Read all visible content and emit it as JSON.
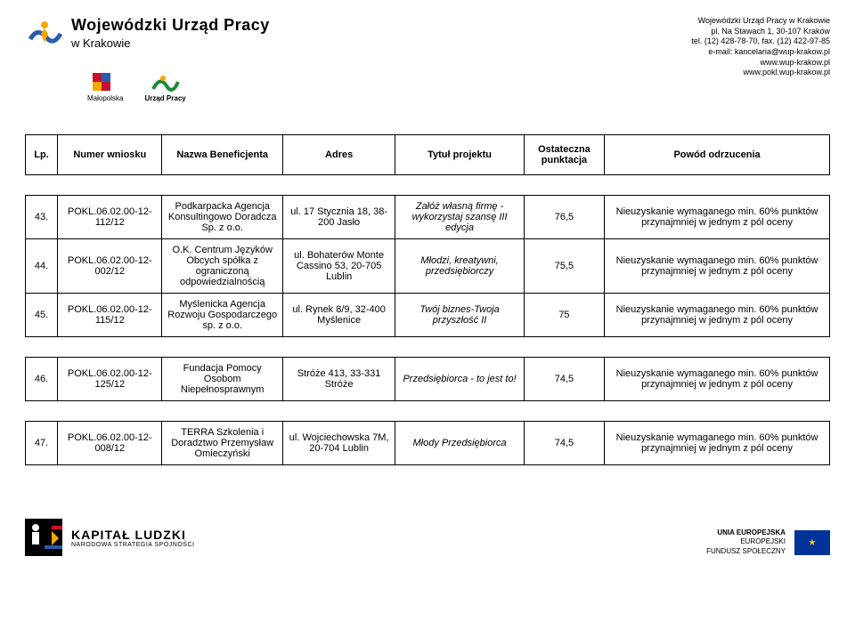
{
  "header": {
    "org_title_1": "Wojewódzki Urząd Pracy",
    "org_title_2": "w Krakowie",
    "address_line1": "Wojewódzki Urząd Pracy w Krakowie",
    "address_line2": "pl. Na Stawach 1, 30-107 Kraków",
    "address_line3": "tel. (12) 428-78-70, fax. (12) 422-97-85",
    "address_line4": "e-mail: kancelaria@wup-krakow.pl",
    "address_line5": "www.wup-krakow.pl",
    "address_line6": "www.pokl.wup-krakow.pl",
    "mid_logo_1": "Małopolska",
    "mid_logo_2": "Urząd Pracy"
  },
  "table": {
    "headers": {
      "c1": "Lp.",
      "c2": "Numer wniosku",
      "c3": "Nazwa Beneficjenta",
      "c4": "Adres",
      "c5": "Tytuł projektu",
      "c6": "Ostateczna punktacja",
      "c7": "Powód odrzucenia"
    },
    "rows": [
      {
        "lp": "43.",
        "num": "POKL.06.02.00-12-112/12",
        "benef": "Podkarpacka Agencja Konsultingowo Doradcza Sp. z o.o.",
        "adres": "ul. 17 Stycznia 18, 38-200 Jasło",
        "tytul": "Załóż własną firmę - wykorzystaj szansę III edycja",
        "pkt": "76,5",
        "powod": "Nieuzyskanie wymaganego min. 60% punktów przynajmniej w jednym z pól oceny"
      },
      {
        "lp": "44.",
        "num": "POKL.06.02.00-12-002/12",
        "benef": "O.K. Centrum Języków Obcych spółka z ograniczoną odpowiedzialnością",
        "adres": "ul. Bohaterów Monte Cassino 53, 20-705 Lublin",
        "tytul": "Młodzi, kreatywni, przedsiębiorczy",
        "pkt": "75,5",
        "powod": "Nieuzyskanie wymaganego min. 60% punktów przynajmniej w jednym z pól oceny"
      },
      {
        "lp": "45.",
        "num": "POKL.06.02.00-12-115/12",
        "benef": "Myślenicka Agencja Rozwoju Gospodarczego sp. z o.o.",
        "adres": "ul. Rynek 8/9, 32-400 Myślenice",
        "tytul": "Twój biznes-Twoja przyszłość II",
        "pkt": "75",
        "powod": "Nieuzyskanie wymaganego min. 60% punktów przynajmniej w jednym z pól oceny"
      },
      {
        "lp": "46.",
        "num": "POKL.06.02.00-12-125/12",
        "benef": "Fundacja Pomocy Osobom Niepełnosprawnym",
        "adres": "Stróże 413, 33-331 Stróże",
        "tytul": "Przedsiębiorca - to jest to!",
        "pkt": "74,5",
        "powod": "Nieuzyskanie wymaganego min. 60% punktów przynajmniej w jednym z pól oceny"
      },
      {
        "lp": "47.",
        "num": "POKL.06.02.00-12-008/12",
        "benef": "TERRA Szkolenia i Doradztwo Przemysław Omieczyński",
        "adres": "ul. Wojciechowska 7M, 20-704 Lublin",
        "tytul": "Młody Przedsiębiorca",
        "pkt": "74,5",
        "powod": "Nieuzyskanie wymaganego min. 60% punktów przynajmniej w jednym z pól oceny"
      }
    ]
  },
  "footer": {
    "kl_1": "KAPITAŁ LUDZKI",
    "kl_2": "NARODOWA STRATEGIA SPÓJNOŚCI",
    "eu_1": "UNIA EUROPEJSKA",
    "eu_2": "EUROPEJSKI",
    "eu_3": "FUNDUSZ SPOŁECZNY"
  },
  "colors": {
    "logo_blue": "#2a5caa",
    "logo_yellow": "#f6a800",
    "eu_blue": "#003399",
    "eu_yellow": "#ffcc00",
    "kl_red": "#c8102e"
  }
}
